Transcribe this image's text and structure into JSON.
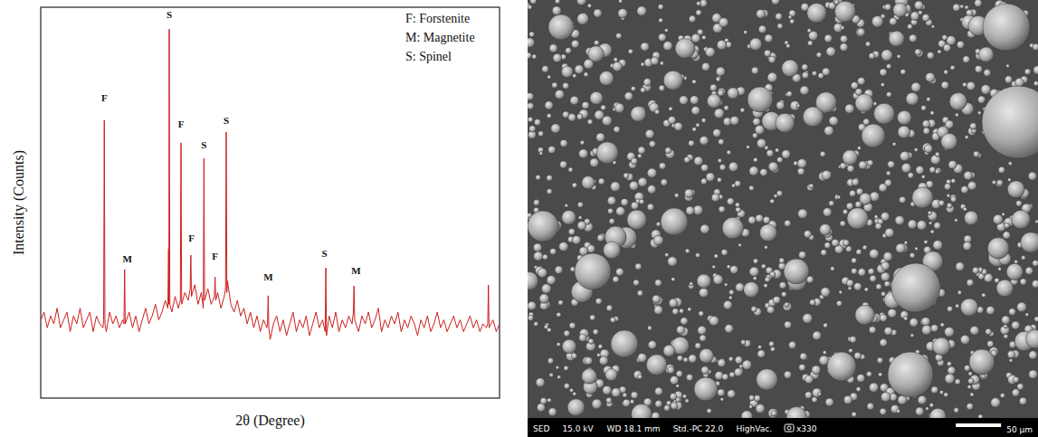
{
  "chart_data": {
    "type": "line",
    "xlabel": "2θ (Degree)",
    "ylabel": "Intensity (Counts)",
    "color": "#cc1f1f",
    "xlim": [
      10,
      80
    ],
    "ylim": [
      0,
      100
    ],
    "tick_labels": false,
    "grid": false,
    "x": [
      10.0,
      10.5,
      11.0,
      11.5,
      12.0,
      12.5,
      13.0,
      13.5,
      14.0,
      14.5,
      15.0,
      15.5,
      16.0,
      16.5,
      17.0,
      17.5,
      18.0,
      18.5,
      19.0,
      19.5,
      19.6,
      19.7,
      19.8,
      20.0,
      20.5,
      21.0,
      21.5,
      22.0,
      22.5,
      22.7,
      22.8,
      22.9,
      23.5,
      24.0,
      24.5,
      25.0,
      25.5,
      26.0,
      26.5,
      27.0,
      27.5,
      28.0,
      28.5,
      29.0,
      29.4,
      29.5,
      29.55,
      29.6,
      29.7,
      30.0,
      30.5,
      31.0,
      31.3,
      31.4,
      31.5,
      32.0,
      32.5,
      32.8,
      32.9,
      33.0,
      33.5,
      34.0,
      34.5,
      34.8,
      34.9,
      35.0,
      35.5,
      36.0,
      36.5,
      36.6,
      36.7,
      37.0,
      37.5,
      38.0,
      38.2,
      38.3,
      38.4,
      38.5,
      39.0,
      39.5,
      40.0,
      40.5,
      41.0,
      41.5,
      42.0,
      42.5,
      43.0,
      43.5,
      44.0,
      44.5,
      44.6,
      44.7,
      44.8,
      45.0,
      45.5,
      46.0,
      46.5,
      47.0,
      47.5,
      48.0,
      48.5,
      49.0,
      49.5,
      50.0,
      50.5,
      51.0,
      51.5,
      52.0,
      52.5,
      53.0,
      53.4,
      53.5,
      53.6,
      54.0,
      54.5,
      55.0,
      55.5,
      56.0,
      56.5,
      57.0,
      57.5,
      57.7,
      57.8,
      57.9,
      58.5,
      59.0,
      59.5,
      60.0,
      60.5,
      61.0,
      61.5,
      62.0,
      62.5,
      63.0,
      63.5,
      64.0,
      64.5,
      65.0,
      65.5,
      66.0,
      66.5,
      67.0,
      67.5,
      68.0,
      68.5,
      69.0,
      69.5,
      70.0,
      70.5,
      71.0,
      71.5,
      72.0,
      72.5,
      73.0,
      73.5,
      74.0,
      74.5,
      75.0,
      75.5,
      76.0,
      76.5,
      77.0,
      77.5,
      78.0,
      78.2,
      78.3,
      78.4,
      79.0,
      79.5,
      80.0
    ],
    "values": [
      20,
      22,
      18,
      21,
      19,
      23,
      18,
      20,
      22,
      17,
      21,
      19,
      23,
      18,
      20,
      22,
      17,
      21,
      19,
      18,
      20,
      71.1,
      19,
      17,
      22,
      19,
      21,
      18,
      20,
      19,
      32.9,
      19,
      22,
      18,
      21,
      17,
      20,
      23,
      19,
      21,
      24,
      20,
      22,
      25,
      23,
      38.2,
      24,
      94.4,
      24,
      22,
      26,
      23,
      25,
      65.3,
      24,
      27,
      25,
      28,
      36.6,
      26,
      29,
      24,
      27,
      23,
      61.3,
      25,
      28,
      24,
      26,
      31.0,
      25,
      27,
      23,
      26,
      28,
      68.1,
      27,
      30,
      24,
      22,
      25,
      21,
      23,
      19,
      22,
      18,
      21,
      17,
      20,
      18,
      19,
      26.2,
      18,
      15,
      19,
      21,
      17,
      20,
      16,
      19,
      22,
      17,
      20,
      18,
      21,
      16,
      19,
      22,
      18,
      20,
      17,
      33.3,
      16,
      21,
      18,
      22,
      17,
      20,
      18,
      21,
      19,
      22,
      28.7,
      20,
      17,
      21,
      19,
      22,
      18,
      20,
      23,
      17,
      20,
      18,
      21,
      19,
      22,
      17,
      20,
      18,
      21,
      19,
      16,
      20,
      18,
      21,
      17,
      19,
      22,
      18,
      20,
      17,
      19,
      21,
      18,
      20,
      17,
      19,
      21,
      18,
      20,
      17,
      19,
      18,
      19,
      28.9,
      18,
      20,
      17,
      19
    ],
    "annotations": [
      {
        "text": "F",
        "x": 19.7,
        "y": 76.4
      },
      {
        "text": "M",
        "x": 23.2,
        "y": 35.4
      },
      {
        "text": "S",
        "x": 29.6,
        "y": 97.7
      },
      {
        "text": "F",
        "x": 31.4,
        "y": 69.9
      },
      {
        "text": "F",
        "x": 33.0,
        "y": 40.7
      },
      {
        "text": "S",
        "x": 34.9,
        "y": 64.4
      },
      {
        "text": "F",
        "x": 36.6,
        "y": 36.1
      },
      {
        "text": "S",
        "x": 38.3,
        "y": 70.8
      },
      {
        "text": "M",
        "x": 44.7,
        "y": 30.6
      },
      {
        "text": "S",
        "x": 53.3,
        "y": 36.6
      },
      {
        "text": "M",
        "x": 58.1,
        "y": 32.4
      }
    ],
    "key_text": [
      "F: Forstenite",
      "M: Magnetite",
      "S: Spinel"
    ]
  },
  "sem_image": {
    "info_bar": [
      "SED",
      "15.0 kV",
      "WD 18.1 mm",
      "Std.-PC 22.0",
      "HighVac."
    ],
    "magnification": "x330",
    "scale_bar": "50 µm"
  }
}
